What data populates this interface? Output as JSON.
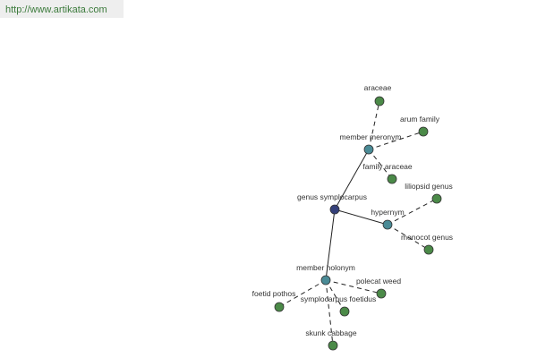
{
  "header": {
    "url": "http://www.artikata.com"
  },
  "nodes": [
    {
      "label": "genus symplocarpus"
    },
    {
      "label": "member meronym"
    },
    {
      "label": "hypernym"
    },
    {
      "label": "member holonym"
    },
    {
      "label": "araceae"
    },
    {
      "label": "arum family"
    },
    {
      "label": "family araceae"
    },
    {
      "label": "liliopsid genus"
    },
    {
      "label": "monocot genus"
    },
    {
      "label": "polecat weed"
    },
    {
      "label": "symplocarpus foetidus"
    },
    {
      "label": "foetid pothos"
    },
    {
      "label": "skunk cabbage"
    }
  ]
}
